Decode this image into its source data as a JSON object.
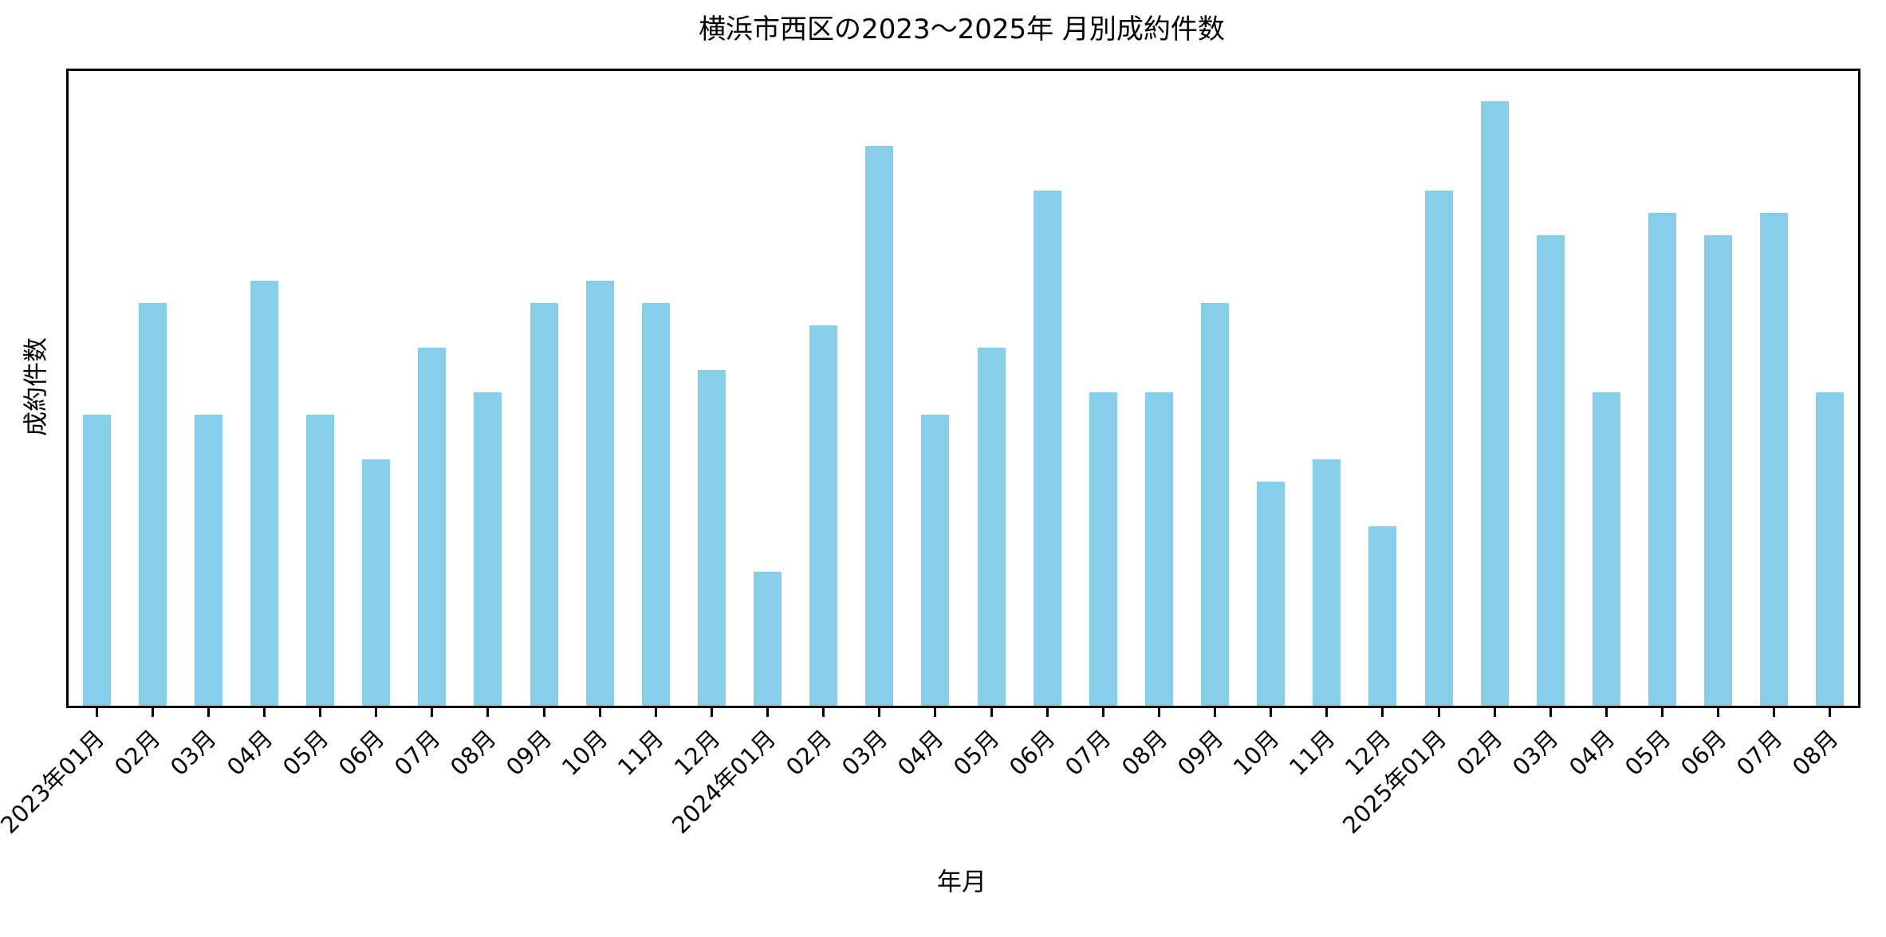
{
  "chart_data": {
    "type": "bar",
    "title": "横浜市西区の2023〜2025年 月別成約件数",
    "xlabel": "年月",
    "ylabel": "成約件数",
    "categories": [
      "2023年01月",
      "02月",
      "03月",
      "04月",
      "05月",
      "06月",
      "07月",
      "08月",
      "09月",
      "10月",
      "11月",
      "12月",
      "2024年01月",
      "02月",
      "03月",
      "04月",
      "05月",
      "06月",
      "07月",
      "08月",
      "09月",
      "10月",
      "11月",
      "12月",
      "2025年01月",
      "02月",
      "03月",
      "04月",
      "05月",
      "06月",
      "07月",
      "08月"
    ],
    "values": [
      13,
      18,
      13,
      19,
      13,
      11,
      16,
      14,
      18,
      19,
      18,
      15,
      6,
      17,
      25,
      13,
      16,
      23,
      14,
      14,
      18,
      10,
      11,
      8,
      23,
      27,
      21,
      14,
      22,
      21,
      22,
      14
    ],
    "ylim": [
      0,
      28.35
    ],
    "bar_color": "#87CEEB",
    "bar_width_frac": 0.5,
    "axis_color": "#000000",
    "background_color": "#ffffff",
    "grid": false,
    "y_ticks_visible": false,
    "x_tick_rotation_deg": 45,
    "legend": "none"
  }
}
